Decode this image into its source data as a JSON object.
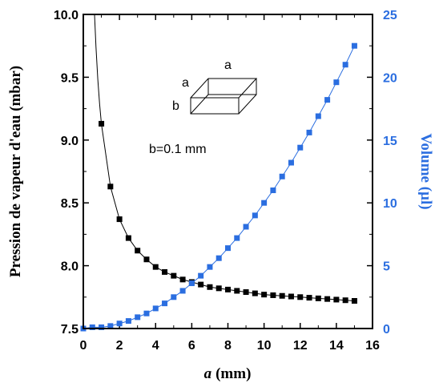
{
  "chart_data": {
    "type": "scatter",
    "xlabel_var": "a",
    "xlabel_unit": "(mm)",
    "ylabel_left": "Pression de vapeur d'eau (mbar)",
    "ylabel_right": "Volume (µl)",
    "xlim": [
      0,
      16
    ],
    "ylim_left": [
      7.5,
      10.0
    ],
    "ylim_right": [
      0,
      25
    ],
    "xticks": [
      "0",
      "2",
      "4",
      "6",
      "8",
      "10",
      "12",
      "14",
      "16"
    ],
    "yticks_left": [
      "7.5",
      "8.0",
      "8.5",
      "9.0",
      "9.5",
      "10.0"
    ],
    "yticks_right": [
      "0",
      "5",
      "10",
      "15",
      "20",
      "25"
    ],
    "annotation": "b=0.1 mm",
    "inset_labels": [
      "a",
      "a",
      "b"
    ],
    "colors": {
      "pressure": "#000000",
      "volume": "#2b6ee0"
    },
    "series": [
      {
        "axis": "left",
        "marker": "square",
        "x": [
          1,
          1.5,
          2,
          2.5,
          3,
          3.5,
          4,
          4.5,
          5,
          5.5,
          6,
          6.5,
          7,
          7.5,
          8,
          8.5,
          9,
          9.5,
          10,
          10.5,
          11,
          11.5,
          12,
          12.5,
          13,
          13.5,
          14,
          14.5,
          15
        ],
        "y": [
          9.13,
          8.63,
          8.37,
          8.22,
          8.12,
          8.05,
          7.99,
          7.95,
          7.92,
          7.89,
          7.87,
          7.85,
          7.83,
          7.82,
          7.81,
          7.8,
          7.79,
          7.78,
          7.77,
          7.765,
          7.76,
          7.755,
          7.75,
          7.745,
          7.74,
          7.735,
          7.73,
          7.725,
          7.72
        ]
      },
      {
        "axis": "right",
        "marker": "square",
        "x": [
          0,
          0.5,
          1,
          1.5,
          2,
          2.5,
          3,
          3.5,
          4,
          4.5,
          5,
          5.5,
          6,
          6.5,
          7,
          7.5,
          8,
          8.5,
          9,
          9.5,
          10,
          10.5,
          11,
          11.5,
          12,
          12.5,
          13,
          13.5,
          14,
          14.5,
          15
        ],
        "y": [
          0,
          0.1,
          0.1,
          0.2,
          0.4,
          0.6,
          0.9,
          1.2,
          1.6,
          2.0,
          2.5,
          3.0,
          3.6,
          4.2,
          4.9,
          5.6,
          6.4,
          7.2,
          8.1,
          9.0,
          10.0,
          11.0,
          12.1,
          13.2,
          14.4,
          15.6,
          16.9,
          18.2,
          19.6,
          21.0,
          22.5
        ]
      }
    ]
  }
}
